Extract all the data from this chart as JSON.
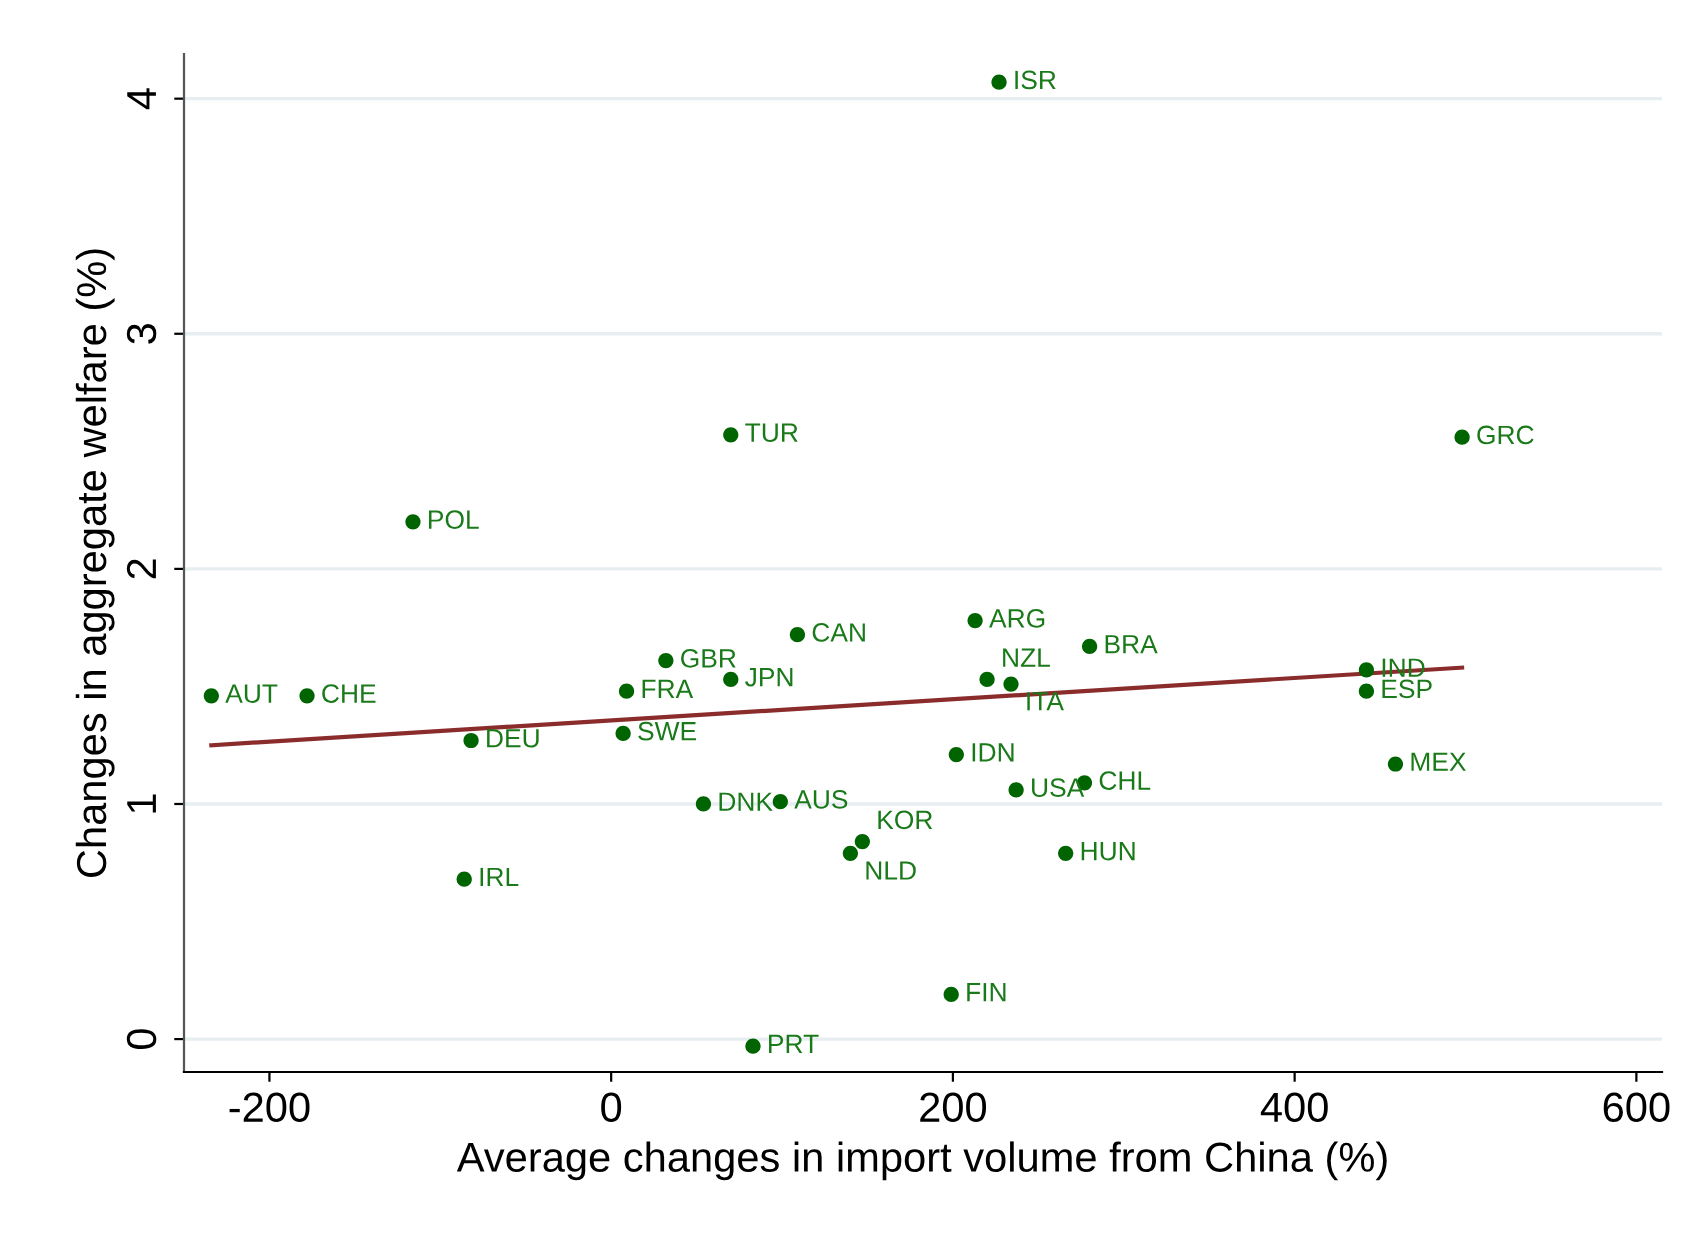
{
  "chart_data": {
    "type": "scatter",
    "xlabel": "Average changes in import volume from China (%)",
    "ylabel": "Changes in aggregate welfare (%)",
    "xlim": [
      -250,
      615
    ],
    "ylim": [
      -0.14,
      4.19
    ],
    "xticks": [
      -200,
      0,
      200,
      400,
      600
    ],
    "yticks": [
      0,
      1,
      2,
      3,
      4
    ],
    "grid": "y",
    "legend": false,
    "marker": "circle",
    "series": [
      {
        "color": "#006400",
        "x": [
          -234,
          -178,
          -116,
          -82,
          -86,
          70,
          32,
          9,
          70,
          7,
          109,
          54,
          99,
          147,
          140,
          83,
          199,
          227,
          213,
          220,
          234,
          202,
          237,
          277,
          266,
          280,
          498,
          442,
          442,
          459
        ],
        "values": [
          1.46,
          1.46,
          2.2,
          1.27,
          0.68,
          2.57,
          1.61,
          1.48,
          1.53,
          1.3,
          1.72,
          1.0,
          1.01,
          0.84,
          0.79,
          -0.03,
          0.19,
          4.07,
          1.78,
          1.53,
          1.51,
          1.21,
          1.06,
          1.09,
          0.79,
          1.67,
          2.56,
          1.57,
          1.48,
          1.17
        ]
      },
      {
        "type": "line",
        "color": "#8b2c2c",
        "marker": "none",
        "x": [
          -234,
          498
        ],
        "values": [
          1.25,
          1.58
        ]
      }
    ],
    "annotations": [
      {
        "text": "AUT",
        "x": -234,
        "y": 1.46
      },
      {
        "text": "CHE",
        "x": -178,
        "y": 1.46
      },
      {
        "text": "POL",
        "x": -116,
        "y": 2.2
      },
      {
        "text": "DEU",
        "x": -82,
        "y": 1.27
      },
      {
        "text": "IRL",
        "x": -86,
        "y": 0.68
      },
      {
        "text": "TUR",
        "x": 70,
        "y": 2.57
      },
      {
        "text": "GBR",
        "x": 32,
        "y": 1.61
      },
      {
        "text": "FRA",
        "x": 9,
        "y": 1.48
      },
      {
        "text": "JPN",
        "x": 70,
        "y": 1.53
      },
      {
        "text": "SWE",
        "x": 7,
        "y": 1.3
      },
      {
        "text": "CAN",
        "x": 109,
        "y": 1.72
      },
      {
        "text": "DNK",
        "x": 54,
        "y": 1.0
      },
      {
        "text": "AUS",
        "x": 99,
        "y": 1.01
      },
      {
        "text": "KOR",
        "x": 147,
        "y": 0.84
      },
      {
        "text": "NLD",
        "x": 140,
        "y": 0.79
      },
      {
        "text": "PRT",
        "x": 83,
        "y": -0.03
      },
      {
        "text": "FIN",
        "x": 199,
        "y": 0.19
      },
      {
        "text": "ISR",
        "x": 227,
        "y": 4.07
      },
      {
        "text": "ARG",
        "x": 213,
        "y": 1.78
      },
      {
        "text": "NZL",
        "x": 220,
        "y": 1.53
      },
      {
        "text": "ITA",
        "x": 234,
        "y": 1.51
      },
      {
        "text": "IDN",
        "x": 202,
        "y": 1.21
      },
      {
        "text": "USA",
        "x": 237,
        "y": 1.06
      },
      {
        "text": "CHL",
        "x": 277,
        "y": 1.09
      },
      {
        "text": "HUN",
        "x": 266,
        "y": 0.79
      },
      {
        "text": "BRA",
        "x": 280,
        "y": 1.67
      },
      {
        "text": "GRC",
        "x": 498,
        "y": 2.56
      },
      {
        "text": "IND",
        "x": 442,
        "y": 1.57
      },
      {
        "text": "ESP",
        "x": 442,
        "y": 1.48
      },
      {
        "text": "MEX",
        "x": 459,
        "y": 1.17
      }
    ]
  }
}
